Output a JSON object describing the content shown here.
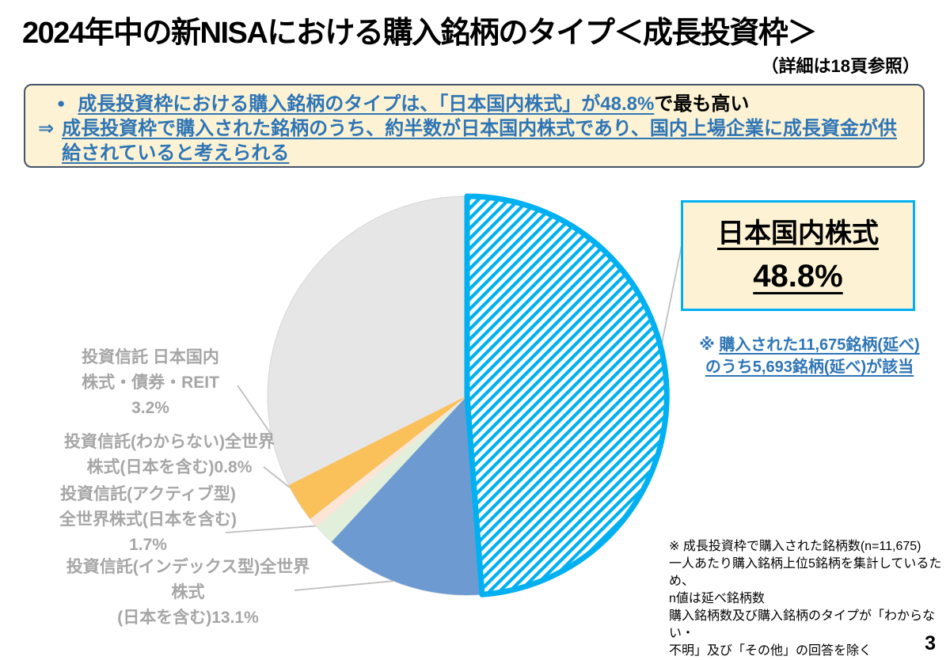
{
  "page": {
    "title": "2024年中の新NISAにおける購入銘柄のタイプ＜成長投資枠＞",
    "detail_note": "（詳細は18頁参照）",
    "page_number": "3"
  },
  "summary_box": {
    "bullet_icon": "●",
    "point_highlight": "成長投資枠における購入銘柄のタイプは、「日本国内株式」が48.8%",
    "point_tail": "で最も高い",
    "arrow_icon": "⇒",
    "implication": "成長投資枠で購入された銘柄のうち、約半数が日本国内株式であり、国内上場企業に成長資金が供給されていると考えられる"
  },
  "callout": {
    "title": "日本国内株式",
    "value": "48.8%",
    "note_marker": "※",
    "note_line1": "購入された11,675銘柄(延べ)",
    "note_line2": "のうち5,693銘柄(延べ)が該当"
  },
  "pie_labels": {
    "fund_domestic": {
      "line1": "投資信託 日本国内",
      "line2": "株式・債券・REIT",
      "line3": "3.2%"
    },
    "fund_unknown": {
      "line1": "投資信託(わからない)全世界",
      "line2": "株式(日本を含む)0.8%"
    },
    "fund_active": {
      "line1": "投資信託(アクティブ型)",
      "line2": "全世界株式(日本を含む)",
      "line3": "1.7%"
    },
    "fund_index": {
      "line1": "投資信託(インデックス型)全世界株式",
      "line2": "(日本を含む)13.1%"
    }
  },
  "footnote": {
    "lines": [
      "※ 成長投資枠で購入された銘柄数(n=11,675)",
      "一人あたり購入銘柄上位5銘柄を集計しているため、",
      "n値は延べ銘柄数",
      "購入銘柄数及び購入銘柄のタイプが「わからない・",
      "不明」及び「その他」の回答を除く"
    ]
  },
  "chart_data": {
    "type": "pie",
    "title": "2024年中の新NISAにおける購入銘柄のタイプ＜成長投資枠＞",
    "unit": "percent",
    "direction": "clockwise",
    "start_angle_deg": 0,
    "legend_position": "none",
    "slices": [
      {
        "label": "日本国内株式",
        "value": 48.8,
        "color": "#00B0F0",
        "hatch": true
      },
      {
        "label": "投資信託(インデックス型)全世界株式(日本を含む)",
        "value": 13.1,
        "color": "#6D9BD1"
      },
      {
        "label": "投資信託(アクティブ型)全世界株式(日本を含む)",
        "value": 1.7,
        "color": "#E2EFDA"
      },
      {
        "label": "投資信託(わからない)全世界株式(日本を含む)",
        "value": 0.8,
        "color": "#FBE5D6"
      },
      {
        "label": "投資信託 日本国内 株式・債券・REIT",
        "value": 3.2,
        "color": "#FAC05A"
      },
      {
        "label": "",
        "value": 32.4,
        "color": "#E7E6E6",
        "remainder": true
      }
    ]
  }
}
